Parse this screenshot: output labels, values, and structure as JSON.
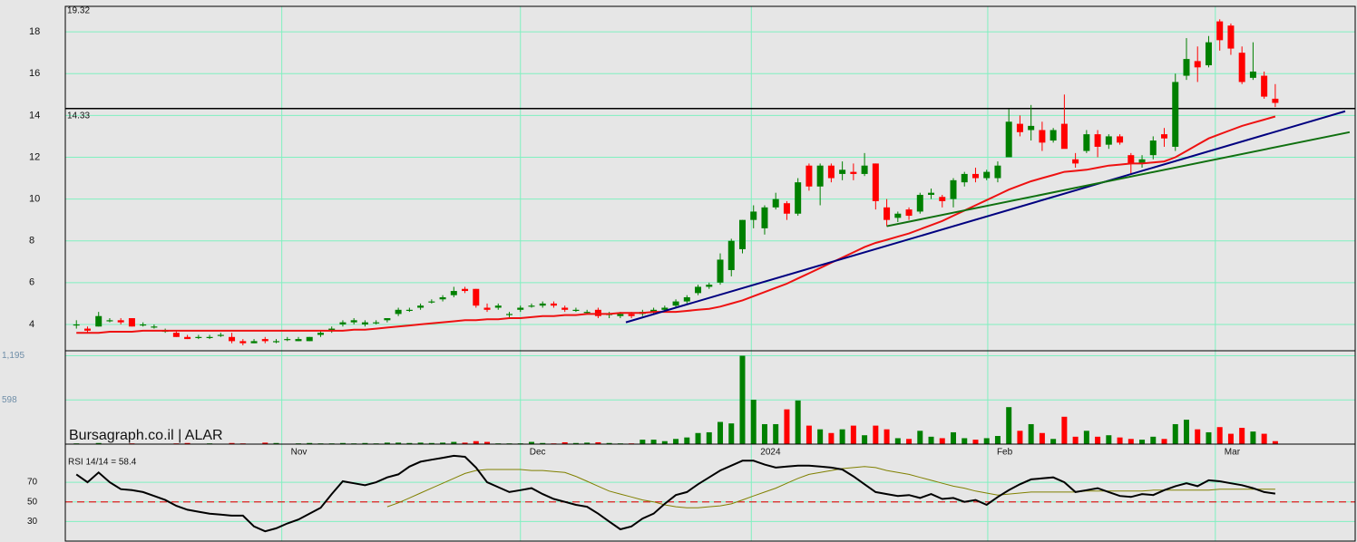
{
  "chart_data": {
    "type": "candlestick",
    "watermark": "Bursagraph.co.il | ALAR",
    "top_value": 19.32,
    "hline": {
      "value": 14.33,
      "color": "#000000"
    },
    "up_color": "#008000",
    "down_color": "#ff0000",
    "grid_color": "#80f0c0",
    "xlim": [
      -1,
      115.2
    ],
    "xticks": [
      {
        "value": 18.5,
        "label": "Nov"
      },
      {
        "value": 40.0,
        "label": "Dec"
      },
      {
        "value": 60.8,
        "label": "2024"
      },
      {
        "value": 82.1,
        "label": "Feb"
      },
      {
        "value": 102.6,
        "label": "Mar"
      }
    ],
    "ylim": [
      2.74,
      19.22
    ],
    "yticks": [
      4,
      6,
      8,
      10,
      12,
      14,
      16,
      18
    ],
    "grid": true,
    "open": [
      4.0,
      3.8,
      3.9,
      4.2,
      4.2,
      4.3,
      4.0,
      3.9,
      3.7,
      3.6,
      3.4,
      3.4,
      3.4,
      3.5,
      3.4,
      3.2,
      3.1,
      3.3,
      3.2,
      3.3,
      3.2,
      3.2,
      3.5,
      3.7,
      4.0,
      4.1,
      4.0,
      4.1,
      4.2,
      4.5,
      4.7,
      4.8,
      5.1,
      5.2,
      5.4,
      5.7,
      5.7,
      4.8,
      4.8,
      4.5,
      4.7,
      4.9,
      4.9,
      5.0,
      4.8,
      4.7,
      4.6,
      4.7,
      4.5,
      4.4,
      4.5,
      4.5,
      4.6,
      4.7,
      4.9,
      5.1,
      5.5,
      5.8,
      6.0,
      6.6,
      7.6,
      9.0,
      8.6,
      9.6,
      9.8,
      9.3,
      11.6,
      10.6,
      11.6,
      11.2,
      11.3,
      11.2,
      11.7,
      9.6,
      9.1,
      9.5,
      9.4,
      10.2,
      10.1,
      10.0,
      10.8,
      11.2,
      11.0,
      11.0,
      12.0,
      13.6,
      13.3,
      13.3,
      12.8,
      13.6,
      11.9,
      12.3,
      13.1,
      12.6,
      13.0,
      12.1,
      11.7,
      12.1,
      13.1,
      12.5,
      15.9,
      16.6,
      16.4,
      18.5,
      18.3,
      17.0,
      15.8,
      15.9,
      14.8
    ],
    "high": [
      4.2,
      3.9,
      4.6,
      4.3,
      4.3,
      4.3,
      4.1,
      4.0,
      3.8,
      3.7,
      3.5,
      3.5,
      3.5,
      3.6,
      3.6,
      3.3,
      3.3,
      3.4,
      3.3,
      3.4,
      3.4,
      3.4,
      3.7,
      3.9,
      4.2,
      4.3,
      4.2,
      4.2,
      4.3,
      4.8,
      4.8,
      5.0,
      5.2,
      5.4,
      5.8,
      5.8,
      5.7,
      5.0,
      5.0,
      4.6,
      4.9,
      5.0,
      5.1,
      5.1,
      4.9,
      4.8,
      4.7,
      4.8,
      4.6,
      4.6,
      4.6,
      4.7,
      4.8,
      4.9,
      5.2,
      5.4,
      5.9,
      6.0,
      7.4,
      8.1,
      9.0,
      9.7,
      9.7,
      10.3,
      9.9,
      11.0,
      11.7,
      11.7,
      11.7,
      11.8,
      11.7,
      12.2,
      11.7,
      10.0,
      9.4,
      9.6,
      10.3,
      10.5,
      10.2,
      11.0,
      11.3,
      11.5,
      11.4,
      11.8,
      14.3,
      14.0,
      14.5,
      13.7,
      13.4,
      15.0,
      12.2,
      13.3,
      13.3,
      13.1,
      13.1,
      12.2,
      12.1,
      13.0,
      13.4,
      16.0,
      17.7,
      17.3,
      17.8,
      18.6,
      18.4,
      17.3,
      17.5,
      16.1,
      15.5
    ],
    "low": [
      3.8,
      3.6,
      3.9,
      4.1,
      4.0,
      3.9,
      3.9,
      3.8,
      3.6,
      3.4,
      3.3,
      3.3,
      3.3,
      3.4,
      3.1,
      3.0,
      3.1,
      3.1,
      3.1,
      3.2,
      3.2,
      3.2,
      3.4,
      3.6,
      3.9,
      4.0,
      3.9,
      4.0,
      4.1,
      4.4,
      4.6,
      4.7,
      5.0,
      5.1,
      5.3,
      5.5,
      4.8,
      4.6,
      4.7,
      4.3,
      4.6,
      4.8,
      4.8,
      4.8,
      4.6,
      4.6,
      4.5,
      4.3,
      4.3,
      4.3,
      4.3,
      4.4,
      4.5,
      4.6,
      4.8,
      5.0,
      5.4,
      5.7,
      5.9,
      6.3,
      7.4,
      8.6,
      8.3,
      9.5,
      9.0,
      9.2,
      10.4,
      9.7,
      10.8,
      10.9,
      10.9,
      11.1,
      9.5,
      8.7,
      8.9,
      9.0,
      9.3,
      10.0,
      9.6,
      9.6,
      10.6,
      10.8,
      10.9,
      10.8,
      12.0,
      13.0,
      12.8,
      12.3,
      12.7,
      12.5,
      11.5,
      12.2,
      12.0,
      12.4,
      12.6,
      11.2,
      11.5,
      11.9,
      12.5,
      12.3,
      15.7,
      15.6,
      16.3,
      17.1,
      16.9,
      15.5,
      15.7,
      14.8,
      14.4
    ],
    "close": [
      4.0,
      3.7,
      4.4,
      4.2,
      4.1,
      3.9,
      4.0,
      3.9,
      3.7,
      3.4,
      3.3,
      3.4,
      3.4,
      3.5,
      3.2,
      3.1,
      3.2,
      3.2,
      3.2,
      3.3,
      3.3,
      3.4,
      3.6,
      3.8,
      4.1,
      4.2,
      4.1,
      4.1,
      4.3,
      4.7,
      4.7,
      4.9,
      5.1,
      5.3,
      5.6,
      5.6,
      4.9,
      4.7,
      4.9,
      4.5,
      4.8,
      4.9,
      5.0,
      4.9,
      4.7,
      4.7,
      4.6,
      4.4,
      4.5,
      4.5,
      4.4,
      4.6,
      4.7,
      4.8,
      5.1,
      5.3,
      5.8,
      5.9,
      7.1,
      8.0,
      9.0,
      9.4,
      9.6,
      10.0,
      9.3,
      10.8,
      10.6,
      11.6,
      11.0,
      11.4,
      11.2,
      11.6,
      9.9,
      9.0,
      9.3,
      9.2,
      10.2,
      10.3,
      9.9,
      10.9,
      11.2,
      11.0,
      11.3,
      11.6,
      13.7,
      13.2,
      13.5,
      12.7,
      13.3,
      12.4,
      11.7,
      13.1,
      12.5,
      13.0,
      12.7,
      11.7,
      11.9,
      12.8,
      12.9,
      15.6,
      16.7,
      16.3,
      17.5,
      17.6,
      17.2,
      15.6,
      16.1,
      14.9,
      14.6
    ],
    "ma": {
      "color": "#ee1111",
      "values": [
        3.6,
        3.6,
        3.6,
        3.65,
        3.65,
        3.65,
        3.7,
        3.7,
        3.7,
        3.7,
        3.7,
        3.7,
        3.7,
        3.7,
        3.7,
        3.7,
        3.7,
        3.7,
        3.7,
        3.7,
        3.7,
        3.7,
        3.7,
        3.7,
        3.7,
        3.75,
        3.75,
        3.8,
        3.85,
        3.9,
        3.95,
        4.0,
        4.05,
        4.1,
        4.15,
        4.2,
        4.2,
        4.25,
        4.25,
        4.3,
        4.3,
        4.35,
        4.4,
        4.4,
        4.45,
        4.45,
        4.5,
        4.5,
        4.5,
        4.55,
        4.55,
        4.55,
        4.6,
        4.6,
        4.6,
        4.65,
        4.7,
        4.75,
        4.85,
        5.0,
        5.15,
        5.35,
        5.55,
        5.75,
        5.95,
        6.2,
        6.45,
        6.7,
        6.95,
        7.2,
        7.45,
        7.7,
        7.9,
        8.05,
        8.2,
        8.35,
        8.55,
        8.75,
        8.95,
        9.2,
        9.45,
        9.7,
        9.95,
        10.2,
        10.45,
        10.65,
        10.85,
        11.0,
        11.15,
        11.3,
        11.35,
        11.4,
        11.5,
        11.6,
        11.65,
        11.7,
        11.7,
        11.75,
        11.8,
        12.0,
        12.3,
        12.6,
        12.9,
        13.1,
        13.3,
        13.5,
        13.65,
        13.8,
        13.95
      ]
    },
    "trendlines": [
      {
        "color": "#000080",
        "points": [
          [
            49.5,
            4.1
          ],
          [
            114.3,
            14.2
          ]
        ]
      },
      {
        "color": "#107010",
        "points": [
          [
            73,
            8.7
          ],
          [
            114.7,
            13.2
          ]
        ]
      }
    ],
    "volume": {
      "ylim": [
        0,
        1250
      ],
      "yticks": [
        598,
        {
          "value": 1195,
          "label": "1,195"
        }
      ],
      "values": [
        10,
        5,
        15,
        5,
        5,
        10,
        5,
        5,
        5,
        10,
        15,
        5,
        10,
        5,
        15,
        10,
        5,
        20,
        15,
        5,
        10,
        15,
        10,
        10,
        15,
        10,
        15,
        10,
        20,
        20,
        15,
        20,
        15,
        20,
        30,
        20,
        40,
        30,
        10,
        10,
        10,
        30,
        15,
        10,
        25,
        15,
        20,
        25,
        15,
        10,
        10,
        60,
        60,
        40,
        70,
        90,
        150,
        160,
        300,
        280,
        1195,
        600,
        270,
        270,
        470,
        590,
        250,
        200,
        150,
        200,
        250,
        120,
        250,
        200,
        80,
        70,
        180,
        100,
        80,
        160,
        80,
        60,
        80,
        110,
        500,
        180,
        270,
        150,
        70,
        370,
        100,
        180,
        100,
        120,
        90,
        70,
        60,
        100,
        70,
        270,
        330,
        200,
        160,
        230,
        140,
        220,
        170,
        140,
        40
      ]
    },
    "rsi": {
      "label": "RSI 14/14 = 58.4",
      "ylim": [
        10,
        108
      ],
      "yticks": [
        30,
        50,
        70
      ],
      "reference": 50,
      "color": "#000000",
      "signal_color": "#808000",
      "values": [
        78,
        70,
        80,
        70,
        63,
        62,
        60,
        56,
        52,
        46,
        42,
        40,
        38,
        37,
        36,
        36,
        25,
        20,
        23,
        28,
        32,
        38,
        44,
        58,
        71,
        69,
        67,
        70,
        75,
        78,
        86,
        91,
        93,
        95,
        97,
        96,
        85,
        70,
        65,
        60,
        62,
        64,
        58,
        53,
        50,
        47,
        45,
        38,
        30,
        22,
        25,
        33,
        38,
        48,
        57,
        60,
        68,
        75,
        82,
        87,
        92,
        92,
        88,
        85,
        86,
        87,
        87,
        86,
        85,
        83,
        76,
        68,
        60,
        58,
        56,
        57,
        54,
        58,
        53,
        54,
        50,
        52,
        47,
        55,
        62,
        68,
        73,
        74,
        75,
        70,
        60,
        62,
        64,
        60,
        56,
        55,
        58,
        57,
        62,
        66,
        69,
        66,
        72,
        71,
        69,
        67,
        64,
        60,
        58.4
      ],
      "signal": [
        null,
        null,
        null,
        null,
        null,
        null,
        null,
        null,
        null,
        null,
        null,
        null,
        null,
        null,
        null,
        null,
        null,
        null,
        null,
        null,
        null,
        null,
        null,
        null,
        null,
        null,
        null,
        null,
        45,
        49,
        54,
        59,
        64,
        69,
        74,
        79,
        82,
        83,
        83,
        83,
        83,
        82,
        82,
        81,
        80,
        76,
        71,
        66,
        61,
        58,
        55,
        52,
        50,
        47,
        45,
        44,
        44,
        45,
        46,
        48,
        52,
        56,
        60,
        64,
        69,
        74,
        78,
        80,
        82,
        84,
        85,
        86,
        85,
        82,
        80,
        78,
        75,
        72,
        69,
        66,
        64,
        61,
        59,
        57,
        58,
        59,
        60,
        60,
        60,
        60,
        60,
        61,
        61,
        61,
        61,
        61,
        61,
        62,
        62,
        62,
        62,
        62,
        62,
        63,
        63,
        63,
        63,
        63,
        63
      ]
    }
  }
}
